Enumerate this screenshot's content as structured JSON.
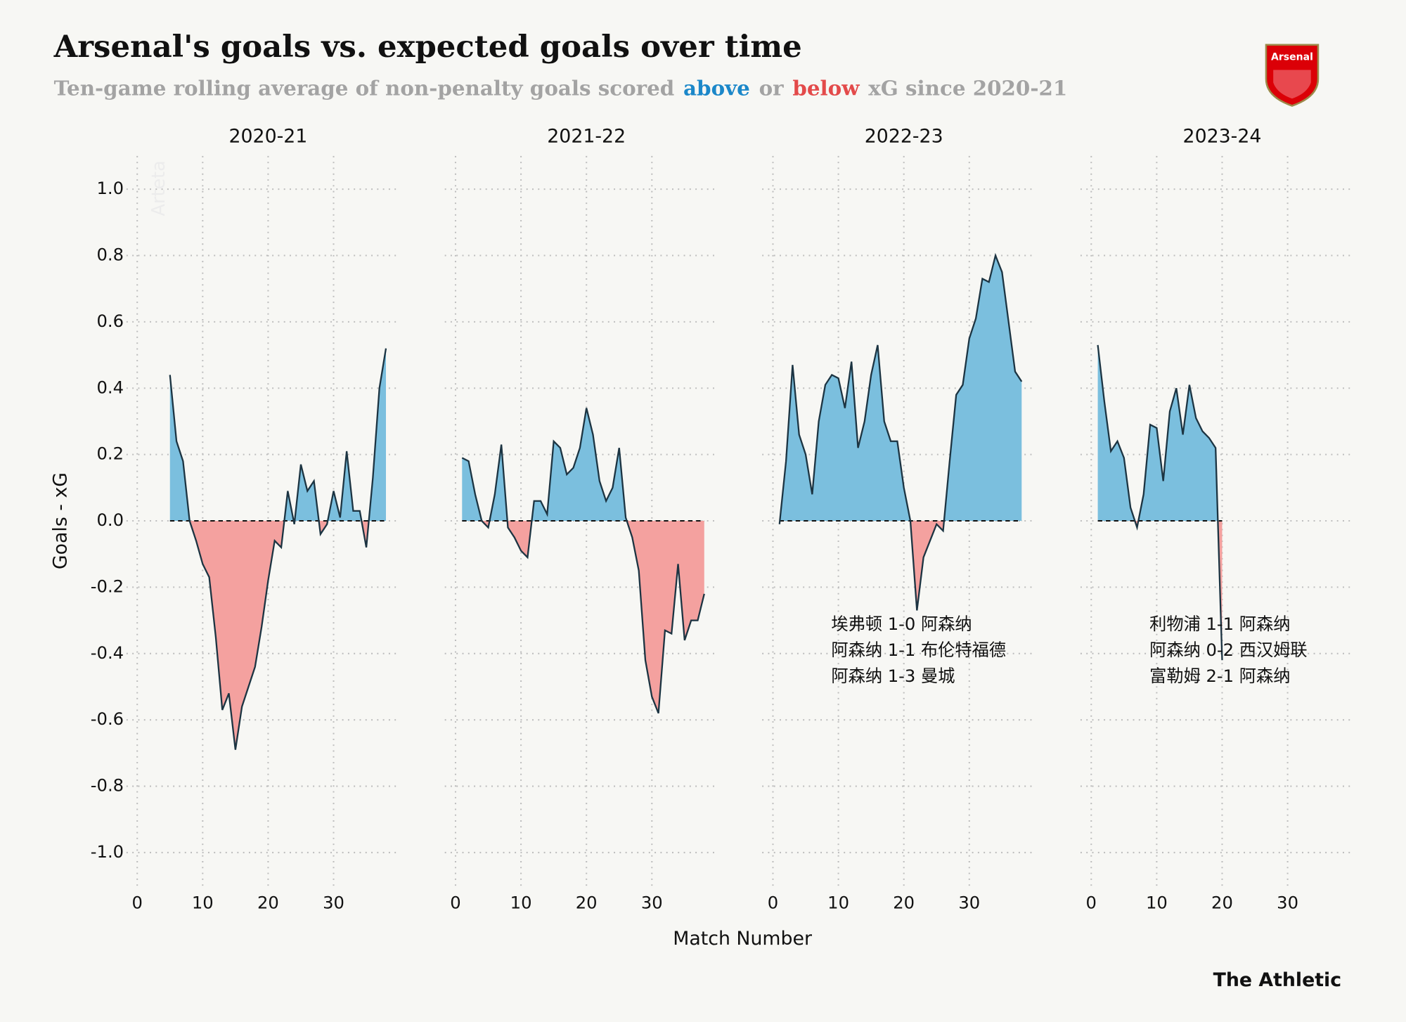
{
  "title": "Arsenal's goals vs. expected goals over time",
  "subtitle": [
    {
      "text": "Ten-game rolling average of non-penalty goals scored",
      "color": "#a3a3a3"
    },
    {
      "text": "above",
      "color": "#1b87c9"
    },
    {
      "text": "or",
      "color": "#a3a3a3"
    },
    {
      "text": "below",
      "color": "#e34a4a"
    },
    {
      "text": "xG since 2020-21",
      "color": "#a3a3a3"
    }
  ],
  "ylabel": "Goals - xG",
  "xlabel": "Match Number",
  "source": "The Athletic",
  "logo": "Arsenal",
  "ylim": [
    -1.1,
    1.1
  ],
  "yticks": [
    {
      "value": -1,
      "label": "-1.0"
    },
    {
      "value": -0.8,
      "label": "-0.8"
    },
    {
      "value": -0.6,
      "label": "-0.6"
    },
    {
      "value": -0.4,
      "label": "-0.4"
    },
    {
      "value": -0.2,
      "label": "-0.2"
    },
    {
      "value": 0,
      "label": "0.0"
    },
    {
      "value": 0.2,
      "label": "0.2"
    },
    {
      "value": 0.4,
      "label": "0.4"
    },
    {
      "value": 0.6,
      "label": "0.6"
    },
    {
      "value": 0.8,
      "label": "0.8"
    },
    {
      "value": 1,
      "label": "1.0"
    }
  ],
  "colors": {
    "above": "#7bbfde",
    "below": "#f4a19f",
    "line": "#1c3442"
  },
  "chart_data": [
    {
      "type": "area",
      "title": "2020-21",
      "xlim": [
        0,
        40
      ],
      "xticks": [
        0,
        10,
        20,
        30
      ],
      "note": "Arteta",
      "x": [
        5,
        6,
        7,
        8,
        9,
        10,
        11,
        12,
        13,
        14,
        15,
        16,
        17,
        18,
        19,
        20,
        21,
        22,
        23,
        24,
        25,
        26,
        27,
        28,
        29,
        30,
        31,
        32,
        33,
        34,
        35,
        36,
        37,
        38
      ],
      "values": [
        0.44,
        0.24,
        0.18,
        0.0,
        -0.06,
        -0.13,
        -0.17,
        -0.35,
        -0.57,
        -0.52,
        -0.69,
        -0.56,
        -0.5,
        -0.44,
        -0.32,
        -0.18,
        -0.06,
        -0.08,
        0.09,
        -0.01,
        0.17,
        0.09,
        0.12,
        -0.04,
        -0.01,
        0.09,
        0.01,
        0.21,
        0.03,
        0.03,
        -0.08,
        0.13,
        0.4,
        0.52
      ]
    },
    {
      "type": "area",
      "title": "2021-22",
      "xlim": [
        0,
        40
      ],
      "xticks": [
        0,
        10,
        20,
        30
      ],
      "x": [
        1,
        2,
        3,
        4,
        5,
        6,
        7,
        8,
        9,
        10,
        11,
        12,
        13,
        14,
        15,
        16,
        17,
        18,
        19,
        20,
        21,
        22,
        23,
        24,
        25,
        26,
        27,
        28,
        29,
        30,
        31,
        32,
        33,
        34,
        35,
        36,
        37,
        38
      ],
      "values": [
        0.19,
        0.18,
        0.08,
        0.0,
        -0.02,
        0.08,
        0.23,
        -0.02,
        -0.05,
        -0.09,
        -0.11,
        0.06,
        0.06,
        0.02,
        0.24,
        0.22,
        0.14,
        0.16,
        0.22,
        0.34,
        0.26,
        0.12,
        0.06,
        0.1,
        0.22,
        0.01,
        -0.05,
        -0.15,
        -0.42,
        -0.53,
        -0.58,
        -0.33,
        -0.34,
        -0.13,
        -0.36,
        -0.3,
        -0.3,
        -0.22
      ]
    },
    {
      "type": "area",
      "title": "2022-23",
      "xlim": [
        0,
        40
      ],
      "xticks": [
        0,
        10,
        20,
        30
      ],
      "annotation": [
        "埃弗顿 1-0 阿森纳",
        "阿森纳 1-1 布伦特福德",
        "阿森纳 1-3 曼城"
      ],
      "x": [
        1,
        2,
        3,
        4,
        5,
        6,
        7,
        8,
        9,
        10,
        11,
        12,
        13,
        14,
        15,
        16,
        17,
        18,
        19,
        20,
        21,
        22,
        23,
        24,
        25,
        26,
        27,
        28,
        29,
        30,
        31,
        32,
        33,
        34,
        35,
        36,
        37,
        38
      ],
      "values": [
        -0.01,
        0.18,
        0.47,
        0.26,
        0.2,
        0.08,
        0.3,
        0.41,
        0.44,
        0.43,
        0.34,
        0.48,
        0.22,
        0.3,
        0.44,
        0.53,
        0.3,
        0.24,
        0.24,
        0.1,
        0.0,
        -0.27,
        -0.11,
        -0.06,
        -0.01,
        -0.03,
        0.18,
        0.38,
        0.41,
        0.55,
        0.61,
        0.73,
        0.72,
        0.8,
        0.75,
        0.6,
        0.45,
        0.42
      ]
    },
    {
      "type": "area",
      "title": "2023-24",
      "xlim": [
        0,
        40
      ],
      "xticks": [
        0,
        10,
        20,
        30
      ],
      "annotation": [
        "利物浦 1-1 阿森纳",
        "阿森纳 0-2 西汉姆联",
        "富勒姆 2-1 阿森纳"
      ],
      "x": [
        1,
        2,
        3,
        4,
        5,
        6,
        7,
        8,
        9,
        10,
        11,
        12,
        13,
        14,
        15,
        16,
        17,
        18,
        19,
        20
      ],
      "values": [
        0.53,
        0.36,
        0.21,
        0.24,
        0.19,
        0.04,
        -0.02,
        0.08,
        0.29,
        0.28,
        0.12,
        0.33,
        0.4,
        0.26,
        0.41,
        0.31,
        0.27,
        0.25,
        0.22,
        -0.42
      ]
    }
  ]
}
